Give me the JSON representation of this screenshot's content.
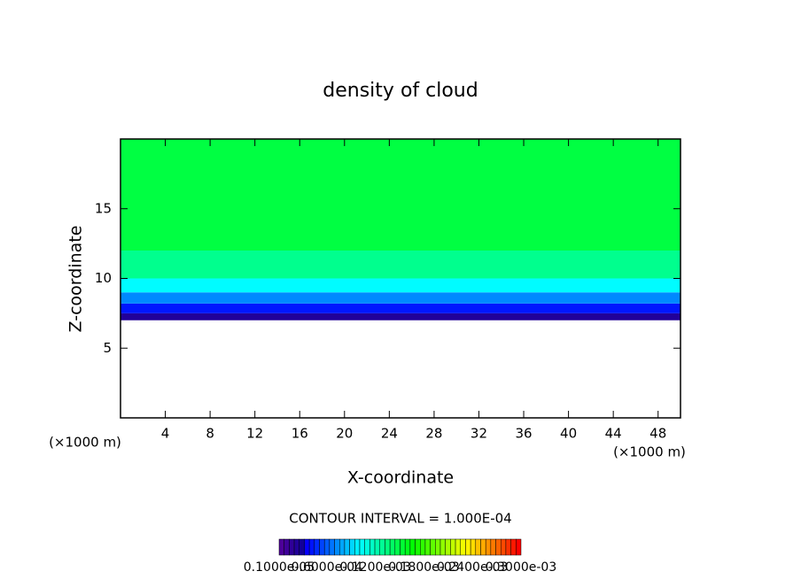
{
  "chart_data": {
    "type": "field",
    "title": "density of cloud",
    "x_label": "X-coordinate",
    "y_label": "Z-coordinate",
    "x_unit_left": "(×1000 m)",
    "x_unit_right": "(×1000 m)",
    "note": "CONTOUR INTERVAL = 1.000E-04",
    "xlim": [
      0,
      50
    ],
    "ylim": [
      0,
      20
    ],
    "xticks": [
      4,
      8,
      12,
      16,
      20,
      24,
      28,
      32,
      36,
      40,
      44,
      48
    ],
    "yticks": [
      5,
      10,
      15
    ],
    "z_edges": [
      7,
      7.5,
      8.2,
      9,
      10,
      12,
      20
    ],
    "values": [
      2e-05,
      4e-05,
      7e-05,
      0.0001,
      0.00013,
      0.00015
    ],
    "clim": [
      1e-06,
      0.0003
    ],
    "colorbar_ticks": [
      {
        "value": 1e-06,
        "label": "0.1000e-05"
      },
      {
        "value": 6e-05,
        "label": "0.6000e-04"
      },
      {
        "value": 0.00012,
        "label": "0.1200e-03"
      },
      {
        "value": 0.00018,
        "label": "0.1800e-03"
      },
      {
        "value": 0.00024,
        "label": "0.2400e-03"
      },
      {
        "value": 0.0003,
        "label": "0.3000e-03"
      }
    ]
  }
}
